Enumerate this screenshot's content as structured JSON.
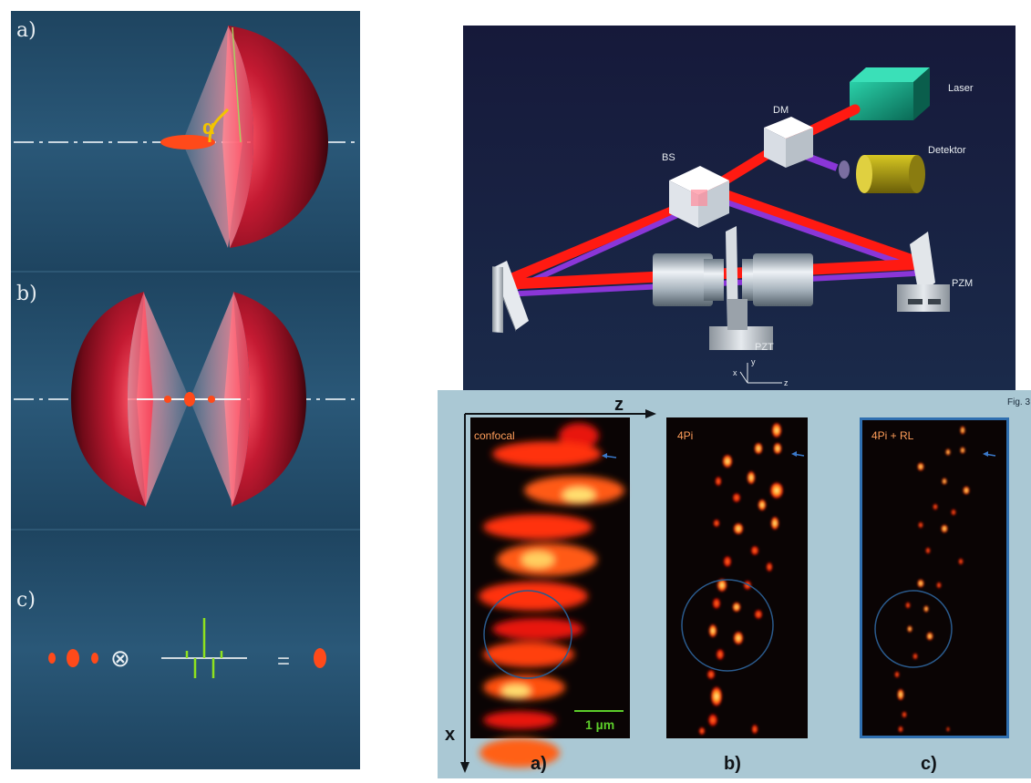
{
  "left_panel": {
    "labels": {
      "a": "a)",
      "b": "b)",
      "c": "c)"
    },
    "alpha_symbol": "α",
    "convolution_symbol": "⊗",
    "equals_symbol": "=",
    "colors": {
      "background": "#234a66",
      "lens": "#8a1024",
      "focus": "#ff3a1a",
      "alpha": "#f2c400",
      "spectrum": "#8fe21e"
    }
  },
  "setup_panel": {
    "labels": {
      "laser": "Laser",
      "dm": "DM",
      "bs": "BS",
      "detector": "Detektor",
      "pzm": "PZM",
      "pzt": "PZT"
    },
    "axes": {
      "x": "x",
      "y": "y",
      "z": "z"
    },
    "colors": {
      "background": "#171e3c",
      "beam": "#ff1a12",
      "detection": "#8a36d8",
      "laser_box": "#14a084",
      "detector": "#b4a516"
    }
  },
  "micrograph_panel": {
    "fig_label": "Fig. 3",
    "axis_z": "z",
    "axis_x": "x",
    "scale_bar": "1 µm",
    "images": [
      {
        "title": "confocal",
        "caption": "a)"
      },
      {
        "title": "4Pi",
        "caption": "b)"
      },
      {
        "title": "4Pi + RL",
        "caption": "c)"
      }
    ],
    "colors": {
      "background": "#aac8d4",
      "image_bg": "#0a0404",
      "title": "#ff9e5a",
      "circle": "#2a5a8c",
      "arrow": "#3a78c8",
      "scale_bar": "#5ccc2a",
      "frame_c": "#2f6fb0"
    }
  }
}
